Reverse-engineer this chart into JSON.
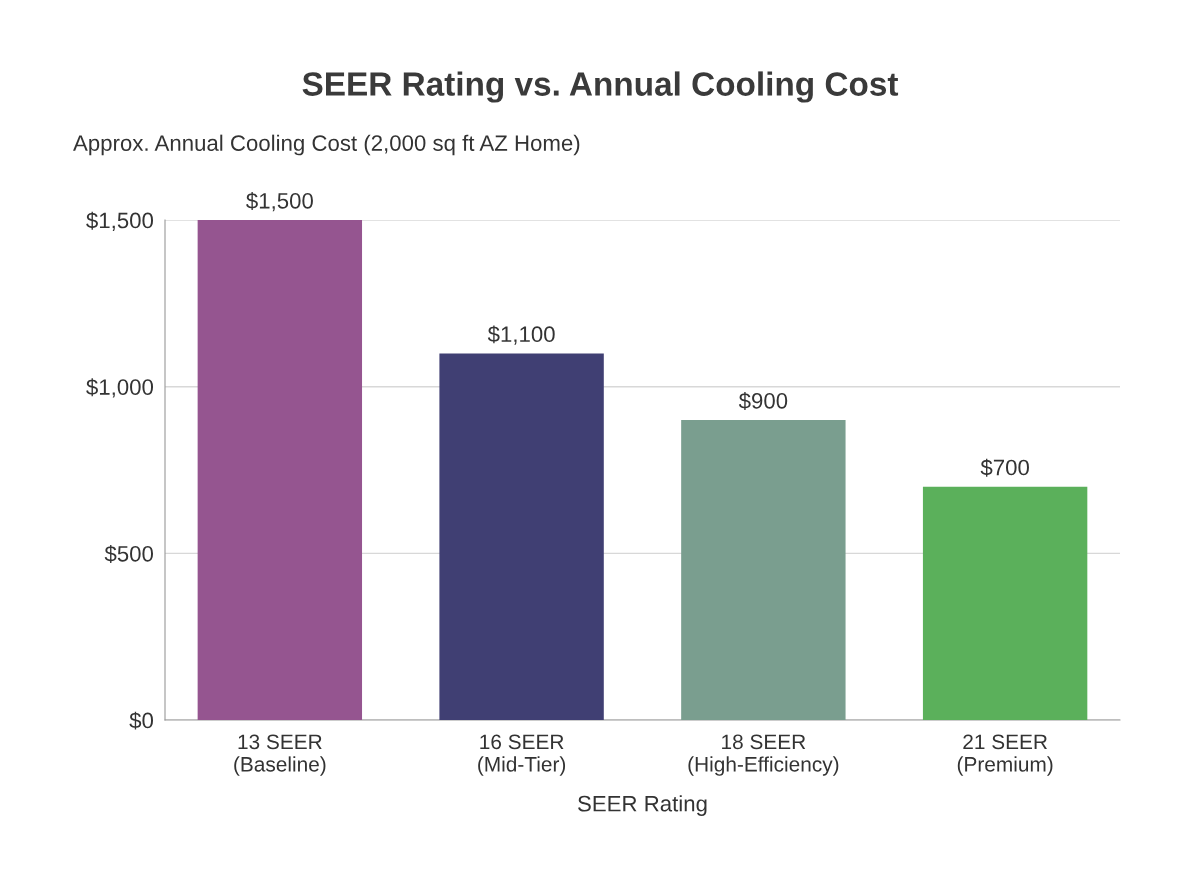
{
  "chart_data": {
    "type": "bar",
    "title": "SEER Rating vs. Annual Cooling Cost",
    "ylabel": "Approx. Annual Cooling Cost (2,000 sq ft AZ Home)",
    "xlabel": "SEER Rating",
    "categories": [
      "13 SEER\n(Baseline)",
      "16 SEER\n(Mid-Tier)",
      "18 SEER\n(High-Efficiency)",
      "21 SEER\n(Premium)"
    ],
    "values": [
      1500,
      1100,
      900,
      700
    ],
    "colors": [
      "#955590",
      "#403f73",
      "#7a9e8f",
      "#5bb05b"
    ],
    "value_labels": [
      "$1,500",
      "$1,100",
      "$900",
      "$700"
    ],
    "ylim": [
      0,
      1500
    ],
    "yticks": [
      {
        "value": 0,
        "label": "$0"
      },
      {
        "value": 500,
        "label": "$500"
      },
      {
        "value": 1000,
        "label": "$1,000"
      },
      {
        "value": 1500,
        "label": "$1,500"
      }
    ],
    "grid": "y",
    "legend": false
  }
}
